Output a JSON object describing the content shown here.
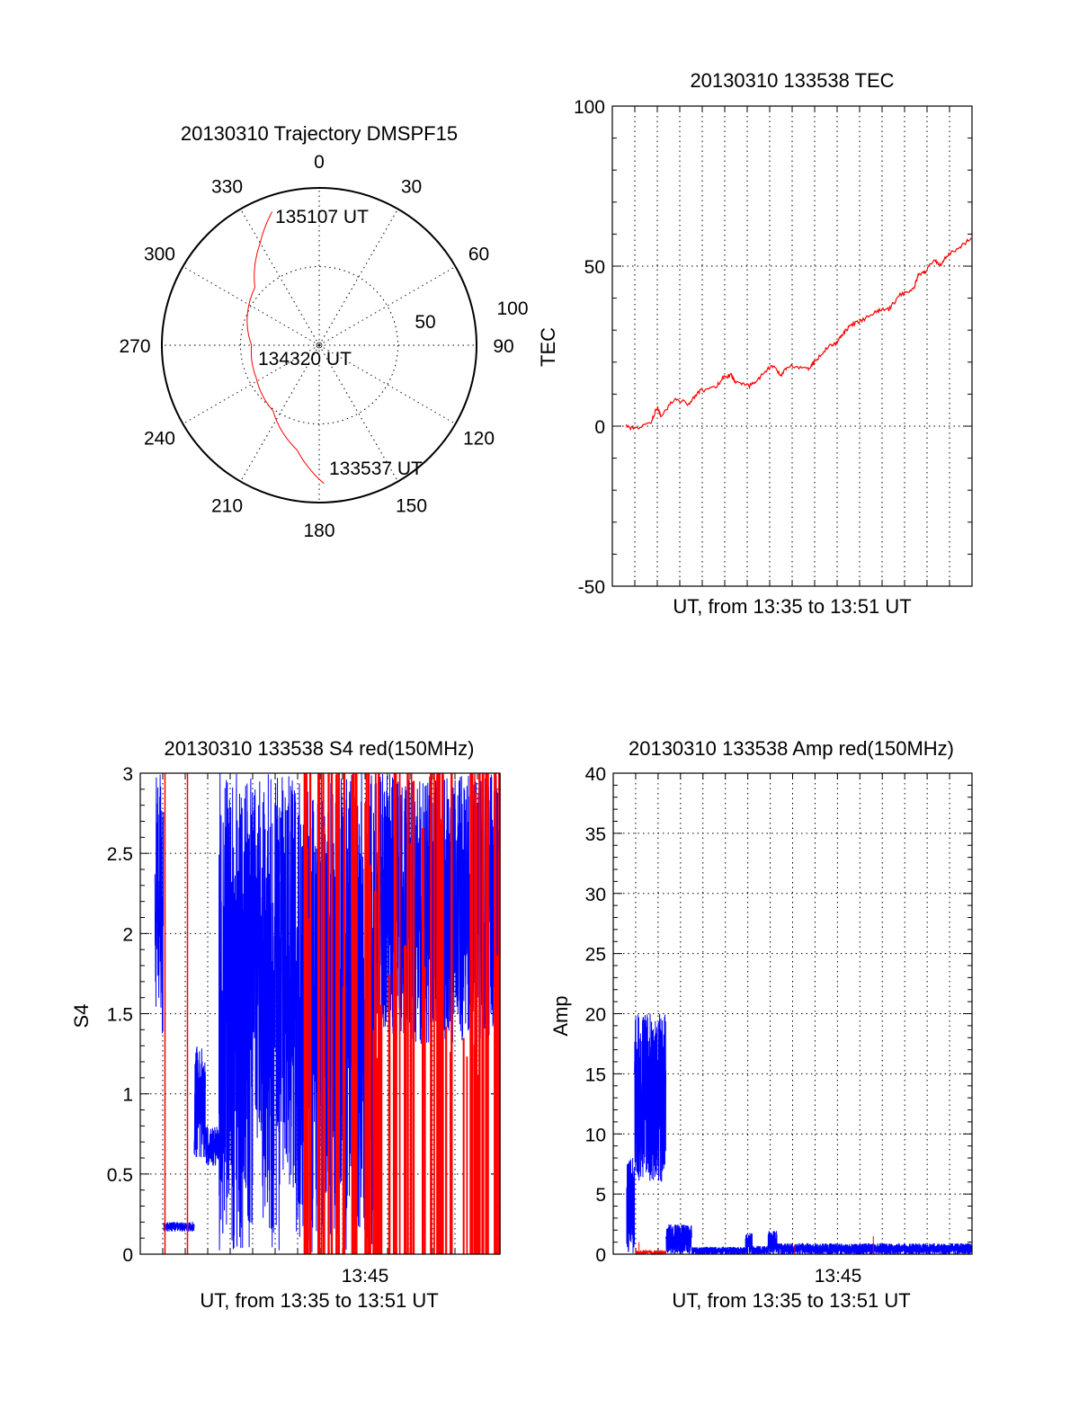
{
  "chart_data": [
    {
      "type": "polar",
      "title": "20130310 Trajectory DMSPF15",
      "angle_labels": [
        "0",
        "30",
        "60",
        "90",
        "120",
        "150",
        "180",
        "210",
        "240",
        "270",
        "300",
        "330"
      ],
      "radius_labels": [
        "50",
        "100"
      ],
      "rlim": [
        0,
        100
      ],
      "grid": true,
      "series": [
        {
          "name": "trajectory",
          "color": "#ff0000",
          "points": [
            {
              "az": 178,
              "r": 88
            },
            {
              "az": 192,
              "r": 68
            },
            {
              "az": 215,
              "r": 51
            },
            {
              "az": 243,
              "r": 45
            },
            {
              "az": 270,
              "r": 43
            },
            {
              "az": 312,
              "r": 55
            },
            {
              "az": 330,
              "r": 75
            },
            {
              "az": 340.6,
              "r": 90
            }
          ]
        }
      ],
      "annotations": [
        "133537 UT",
        "134320 UT",
        "135107 UT"
      ]
    },
    {
      "type": "line",
      "title": "20130310 133538 TEC",
      "xlabel": "UT, from 13:35 to 13:51 UT",
      "ylabel": "TEC",
      "xlim": [
        0,
        16
      ],
      "ylim": [
        -50,
        100
      ],
      "yticks": [
        "100",
        "50",
        "0",
        "-50"
      ],
      "grid": true,
      "series": [
        {
          "name": "TEC",
          "color": "#ff0000",
          "x": [
            0.62,
            1.0,
            1.7,
            2.0,
            2.15,
            2.75,
            3.4,
            3.9,
            4.6,
            4.9,
            5.3,
            5.5,
            6.1,
            6.6,
            7.1,
            7.5,
            7.9,
            8.7,
            9.0,
            9.6,
            10.0,
            10.2,
            10.6,
            11.1,
            11.8,
            12.3,
            12.8,
            13.4,
            13.6,
            13.9,
            14.3,
            14.6,
            15.0,
            15.5,
            16.0
          ],
          "y": [
            0,
            -1,
            1,
            6,
            3,
            8.5,
            7,
            11,
            12,
            15,
            16,
            13.5,
            12.5,
            15.5,
            19,
            16,
            19,
            18,
            20,
            25,
            26,
            28.5,
            31.5,
            33,
            36,
            36.5,
            41,
            43,
            47,
            48,
            52,
            50.5,
            54,
            56,
            59
          ]
        }
      ]
    },
    {
      "type": "line",
      "title": "20130310 133538 S4 red(150MHz)",
      "xlabel": "UT, from 13:35 to 13:51 UT",
      "ylabel": "S4",
      "xtick_label": "13:45",
      "xtick_value": 10,
      "xlim": [
        0,
        16
      ],
      "ylim": [
        0,
        3
      ],
      "yticks": [
        "3",
        "2.5",
        "2",
        "1.5",
        "1",
        "0.5",
        "0"
      ],
      "grid": true,
      "series": [
        {
          "name": "blue",
          "color": "#0000ff",
          "segments": [
            {
              "t0": 0.65,
              "t1": 1.04,
              "lo": 1.3,
              "hi": 3.0
            },
            {
              "t0": 1.04,
              "t1": 2.4,
              "lo": 0.14,
              "hi": 0.2
            },
            {
              "t0": 2.4,
              "t1": 2.9,
              "lo": 0.6,
              "hi": 1.3
            },
            {
              "t0": 2.9,
              "t1": 3.5,
              "lo": 0.55,
              "hi": 0.8
            },
            {
              "t0": 3.5,
              "t1": 5.0,
              "lo": 0,
              "hi": 3.0
            },
            {
              "t0": 5.0,
              "t1": 5.4,
              "lo": 0.6,
              "hi": 3.0
            },
            {
              "t0": 5.4,
              "t1": 6.2,
              "lo": 0,
              "hi": 3.0
            },
            {
              "t0": 6.2,
              "t1": 6.9,
              "lo": 0.4,
              "hi": 3.0
            },
            {
              "t0": 6.9,
              "t1": 10.5,
              "lo": 0,
              "hi": 3.0
            },
            {
              "t0": 10.5,
              "t1": 16.0,
              "lo": 1.3,
              "hi": 3.0
            }
          ]
        },
        {
          "name": "red",
          "color": "#ff0000",
          "spikes": [
            1.1,
            2.1
          ],
          "spike_region": {
            "t0": 7.1,
            "t1": 16.0,
            "count": 95
          }
        }
      ]
    },
    {
      "type": "line",
      "title": "20130310 133538 Amp red(150MHz)",
      "xlabel": "UT, from 13:35 to 13:51 UT",
      "ylabel": "Amp",
      "xtick_label": "13:45",
      "xtick_value": 10,
      "xlim": [
        0,
        16
      ],
      "ylim": [
        0,
        40
      ],
      "yticks": [
        "40",
        "35",
        "30",
        "25",
        "20",
        "15",
        "10",
        "5",
        "0"
      ],
      "grid": true,
      "series": [
        {
          "name": "blue",
          "color": "#0000ff",
          "segments": [
            {
              "t0": 0.6,
              "t1": 0.95,
              "lo": 0,
              "hi": 8
            },
            {
              "t0": 0.95,
              "t1": 2.35,
              "lo": 6,
              "hi": 20
            },
            {
              "t0": 2.35,
              "t1": 3.5,
              "lo": 0,
              "hi": 2.5
            },
            {
              "t0": 3.5,
              "t1": 5.9,
              "lo": 0,
              "hi": 0.6
            },
            {
              "t0": 5.9,
              "t1": 6.2,
              "lo": 0,
              "hi": 1.8
            },
            {
              "t0": 6.2,
              "t1": 6.9,
              "lo": 0,
              "hi": 0.7
            },
            {
              "t0": 6.9,
              "t1": 7.3,
              "lo": 0,
              "hi": 2.0
            },
            {
              "t0": 7.3,
              "t1": 16.0,
              "lo": 0,
              "hi": 0.9
            }
          ]
        },
        {
          "name": "red",
          "color": "#ff0000",
          "segments": [
            {
              "t0": 1.0,
              "t1": 2.35,
              "lo": 0,
              "hi": 0.3
            }
          ],
          "spikes": [
            {
              "t": 1.15,
              "v": 1.0
            },
            {
              "t": 8.1,
              "v": 0.8
            },
            {
              "t": 11.6,
              "v": 1.5
            }
          ]
        }
      ]
    }
  ]
}
